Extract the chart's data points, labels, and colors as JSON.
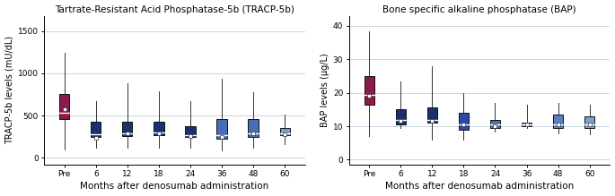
{
  "tracp": {
    "title": "Tartrate-Resistant Acid Phosphatase-5b (TRACP-5b)",
    "ylabel": "TRACP-5b levels (mU/dL)",
    "xlabel": "Months after denosumab administration",
    "ylim": [
      -80,
      1680
    ],
    "yticks": [
      0,
      500,
      1000,
      1500
    ],
    "categories": [
      "Pre",
      "6",
      "12",
      "18",
      "24",
      "36",
      "48",
      "60"
    ],
    "box_colors": [
      "#8c1a4b",
      "#1c2f6e",
      "#1c2f6e",
      "#1c2f6e",
      "#1c2f6e",
      "#4a6eb5",
      "#4a6eb5",
      "#7a9fd4"
    ],
    "whisker_lo": [
      100,
      120,
      120,
      120,
      120,
      90,
      120,
      160
    ],
    "q1": [
      460,
      245,
      260,
      265,
      250,
      230,
      245,
      265
    ],
    "median": [
      530,
      285,
      295,
      300,
      265,
      268,
      295,
      288
    ],
    "mean": [
      575,
      235,
      290,
      295,
      255,
      250,
      290,
      282
    ],
    "q3": [
      760,
      425,
      425,
      425,
      375,
      455,
      455,
      358
    ],
    "whisker_hi": [
      1240,
      675,
      885,
      785,
      675,
      935,
      775,
      508
    ]
  },
  "bap": {
    "title": "Bone specific alkaline phosphatase (BAP)",
    "ylabel": "BAP levels (μg/L)",
    "xlabel": "Months after denosumab administration",
    "ylim": [
      -1.5,
      43
    ],
    "yticks": [
      0,
      10,
      20,
      30,
      40
    ],
    "categories": [
      "Pre",
      "6",
      "12",
      "18",
      "24",
      "36",
      "48",
      "60"
    ],
    "box_colors": [
      "#8c1a4b",
      "#1c2f6e",
      "#1c2f6e",
      "#2a4aab",
      "#4a6eb5",
      "#7a9fd4",
      "#5a7fc4",
      "#7a9fd4"
    ],
    "whisker_lo": [
      7.0,
      9.5,
      6.0,
      6.0,
      8.5,
      9.5,
      8.0,
      7.5
    ],
    "q1": [
      16.5,
      10.5,
      11.0,
      9.0,
      9.5,
      10.0,
      9.5,
      9.5
    ],
    "median": [
      19.5,
      12.0,
      12.0,
      10.5,
      10.5,
      10.5,
      10.5,
      10.5
    ],
    "mean": [
      19.0,
      11.5,
      11.5,
      10.5,
      10.0,
      10.5,
      10.5,
      10.5
    ],
    "q3": [
      25.0,
      15.0,
      15.5,
      14.0,
      12.0,
      11.0,
      13.5,
      13.0
    ],
    "whisker_hi": [
      38.5,
      23.5,
      28.0,
      20.0,
      17.0,
      16.5,
      17.0,
      16.5
    ]
  },
  "background_color": "#ffffff",
  "grid_color": "#c0d0e0",
  "box_width": 0.32,
  "line_color": "#111111",
  "whisker_color": "#333333",
  "mean_marker_color": "#ffffff",
  "mean_marker_size": 3.0,
  "title_fontsize": 7.5,
  "label_fontsize": 7.0,
  "tick_fontsize": 6.5
}
